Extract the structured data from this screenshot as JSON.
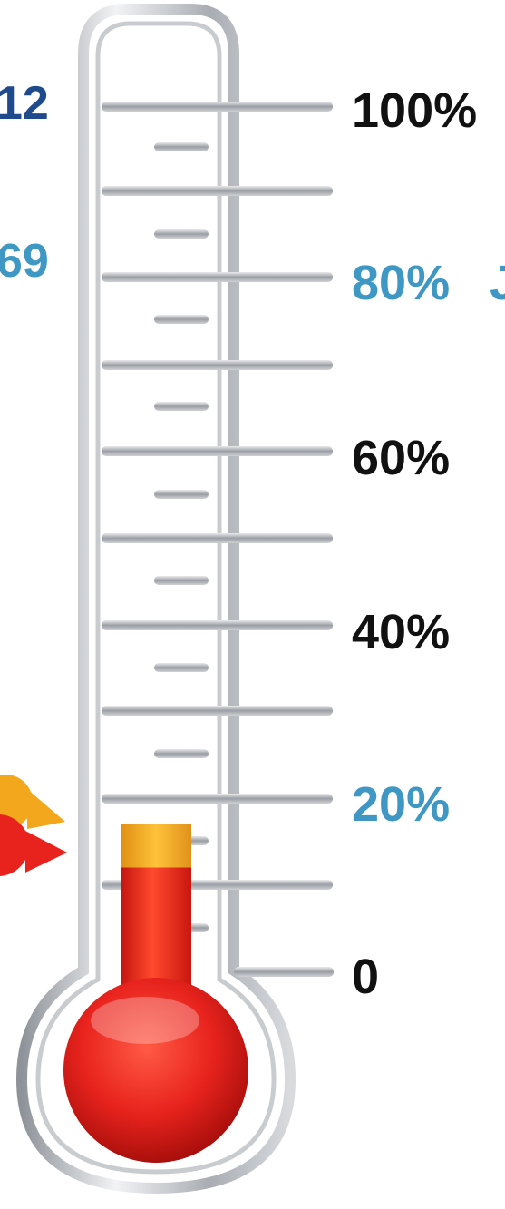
{
  "thermometer": {
    "scale_labels": [
      "100%",
      "80%",
      "60%",
      "40%",
      "20%",
      "0"
    ],
    "left_values": [
      "12",
      "69"
    ],
    "right_edge_fragment": "J",
    "fill_red_percent": 12,
    "fill_orange_percent": 17
  },
  "colors": {
    "dark_blue": "#1f4a8c",
    "light_blue": "#3f97c4",
    "black": "#111111",
    "mercury_red": "#e8231d",
    "mercury_orange": "#f2a71c",
    "tube_silver": "#b8bcc2"
  }
}
